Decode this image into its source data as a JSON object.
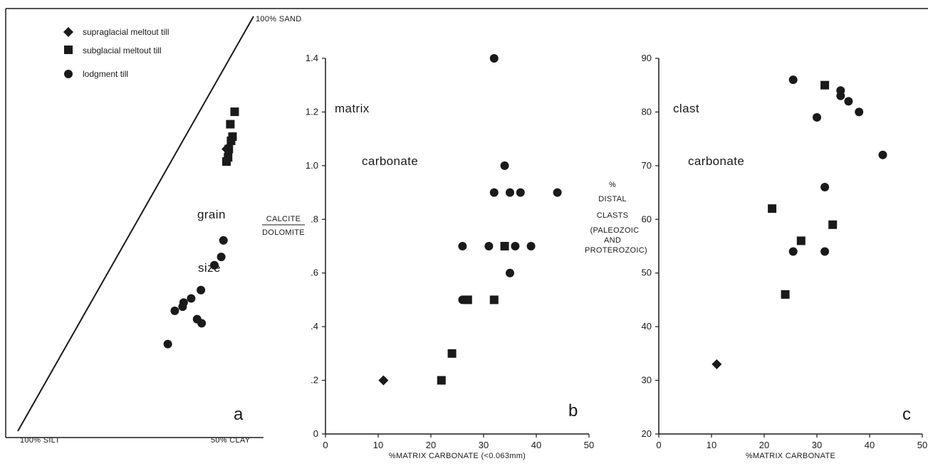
{
  "chart_data": [
    {
      "type": "scatter",
      "panel_label": "a",
      "corner_labels": {
        "top": "100% SAND",
        "left": "100% SILT",
        "right": "50% CLAY"
      },
      "annotations": [
        "grain",
        "size"
      ],
      "legend": [
        {
          "marker": "diamond",
          "label": "supraglacial meltout till"
        },
        {
          "marker": "square",
          "label": "subglacial meltout till"
        },
        {
          "marker": "circle",
          "label": "lodgment till"
        }
      ],
      "series": [
        {
          "name": "supraglacial meltout till",
          "marker": "diamond",
          "points": [
            {
              "sand": 0.68,
              "clay_frac": 0.63
            }
          ]
        },
        {
          "name": "subglacial meltout till",
          "marker": "square",
          "points": [
            {
              "sand": 0.77,
              "clay_frac": 0.64
            },
            {
              "sand": 0.74,
              "clay_frac": 0.61
            },
            {
              "sand": 0.71,
              "clay_frac": 0.68
            },
            {
              "sand": 0.7,
              "clay_frac": 0.67
            },
            {
              "sand": 0.66,
              "clay_frac": 0.67
            },
            {
              "sand": 0.65,
              "clay_frac": 0.66
            },
            {
              "sand": 0.68,
              "clay_frac": 0.66
            }
          ]
        },
        {
          "name": "lodgment till",
          "marker": "circle",
          "points": [
            {
              "sand": 0.46,
              "clay_frac": 0.75
            },
            {
              "sand": 0.42,
              "clay_frac": 0.75
            },
            {
              "sand": 0.4,
              "clay_frac": 0.71
            },
            {
              "sand": 0.34,
              "clay_frac": 0.65
            },
            {
              "sand": 0.32,
              "clay_frac": 0.6
            },
            {
              "sand": 0.31,
              "clay_frac": 0.56
            },
            {
              "sand": 0.3,
              "clay_frac": 0.56
            },
            {
              "sand": 0.29,
              "clay_frac": 0.52
            },
            {
              "sand": 0.27,
              "clay_frac": 0.66
            },
            {
              "sand": 0.26,
              "clay_frac": 0.69
            },
            {
              "sand": 0.21,
              "clay_frac": 0.53
            }
          ]
        }
      ]
    },
    {
      "type": "scatter",
      "panel_label": "b",
      "xlabel": "%MATRIX CARBONATE (<0.063mm)",
      "ylabel": [
        "CALCITE",
        "DOLOMITE"
      ],
      "annotations": [
        "matrix",
        "carbonate"
      ],
      "xlim": [
        0,
        50
      ],
      "ylim": [
        0,
        1.4
      ],
      "x_ticks": [
        {
          "value": 0,
          "label": "0"
        },
        {
          "value": 10,
          "label": "10"
        },
        {
          "value": 20,
          "label": "20"
        },
        {
          "value": 30,
          "label": "30"
        },
        {
          "value": 40,
          "label": "40"
        },
        {
          "value": 50,
          "label": "50"
        }
      ],
      "y_ticks": [
        {
          "value": 0,
          "label": "0"
        },
        {
          "value": 0.2,
          "label": ".2"
        },
        {
          "value": 0.4,
          "label": ".4"
        },
        {
          "value": 0.6,
          "label": ".6"
        },
        {
          "value": 0.8,
          "label": ".8"
        },
        {
          "value": 1.0,
          "label": "1.0"
        },
        {
          "value": 1.2,
          "label": "1.2"
        },
        {
          "value": 1.4,
          "label": "1.4"
        }
      ],
      "series": [
        {
          "name": "supraglacial meltout till",
          "marker": "diamond",
          "points": [
            {
              "x": 11,
              "y": 0.2
            }
          ]
        },
        {
          "name": "subglacial meltout till",
          "marker": "square",
          "points": [
            {
              "x": 22,
              "y": 0.2
            },
            {
              "x": 24,
              "y": 0.3
            },
            {
              "x": 27,
              "y": 0.5
            },
            {
              "x": 32,
              "y": 0.5
            },
            {
              "x": 34,
              "y": 0.7
            }
          ]
        },
        {
          "name": "lodgment till",
          "marker": "circle",
          "points": [
            {
              "x": 32,
              "y": 1.4
            },
            {
              "x": 34,
              "y": 1.0
            },
            {
              "x": 32,
              "y": 0.9
            },
            {
              "x": 35,
              "y": 0.9
            },
            {
              "x": 37,
              "y": 0.9
            },
            {
              "x": 44,
              "y": 0.9
            },
            {
              "x": 26,
              "y": 0.7
            },
            {
              "x": 31,
              "y": 0.7
            },
            {
              "x": 36,
              "y": 0.7
            },
            {
              "x": 39,
              "y": 0.7
            },
            {
              "x": 35,
              "y": 0.6
            },
            {
              "x": 26,
              "y": 0.5
            }
          ]
        }
      ]
    },
    {
      "type": "scatter",
      "panel_label": "c",
      "xlabel": "%MATRIX CARBONATE",
      "ylabel": [
        "%",
        "DISTAL",
        "CLASTS",
        "(PALEOZOIC",
        "AND",
        "PROTEROZOIC)"
      ],
      "annotations": [
        "clast",
        "carbonate"
      ],
      "xlim": [
        0,
        50
      ],
      "ylim": [
        20,
        90
      ],
      "x_ticks": [
        {
          "value": 0,
          "label": "0"
        },
        {
          "value": 10,
          "label": "10"
        },
        {
          "value": 20,
          "label": "20"
        },
        {
          "value": 30,
          "label": "30"
        },
        {
          "value": 40,
          "label": "40"
        },
        {
          "value": 50,
          "label": "50"
        }
      ],
      "y_ticks": [
        {
          "value": 20,
          "label": "20"
        },
        {
          "value": 30,
          "label": "30"
        },
        {
          "value": 40,
          "label": "40"
        },
        {
          "value": 50,
          "label": "50"
        },
        {
          "value": 60,
          "label": "60"
        },
        {
          "value": 70,
          "label": "70"
        },
        {
          "value": 80,
          "label": "80"
        },
        {
          "value": 90,
          "label": "90"
        }
      ],
      "series": [
        {
          "name": "supraglacial meltout till",
          "marker": "diamond",
          "points": [
            {
              "x": 11,
              "y": 33
            }
          ]
        },
        {
          "name": "subglacial meltout till",
          "marker": "square",
          "points": [
            {
              "x": 31.5,
              "y": 85
            },
            {
              "x": 21.5,
              "y": 62
            },
            {
              "x": 33,
              "y": 59
            },
            {
              "x": 27,
              "y": 56
            },
            {
              "x": 24,
              "y": 46
            }
          ]
        },
        {
          "name": "lodgment till",
          "marker": "circle",
          "points": [
            {
              "x": 25.5,
              "y": 86
            },
            {
              "x": 34.5,
              "y": 84
            },
            {
              "x": 34.5,
              "y": 83
            },
            {
              "x": 36,
              "y": 82
            },
            {
              "x": 38,
              "y": 80
            },
            {
              "x": 30,
              "y": 79
            },
            {
              "x": 42.5,
              "y": 72
            },
            {
              "x": 31.5,
              "y": 66
            },
            {
              "x": 25.5,
              "y": 54
            },
            {
              "x": 31.5,
              "y": 54
            }
          ]
        }
      ]
    }
  ]
}
